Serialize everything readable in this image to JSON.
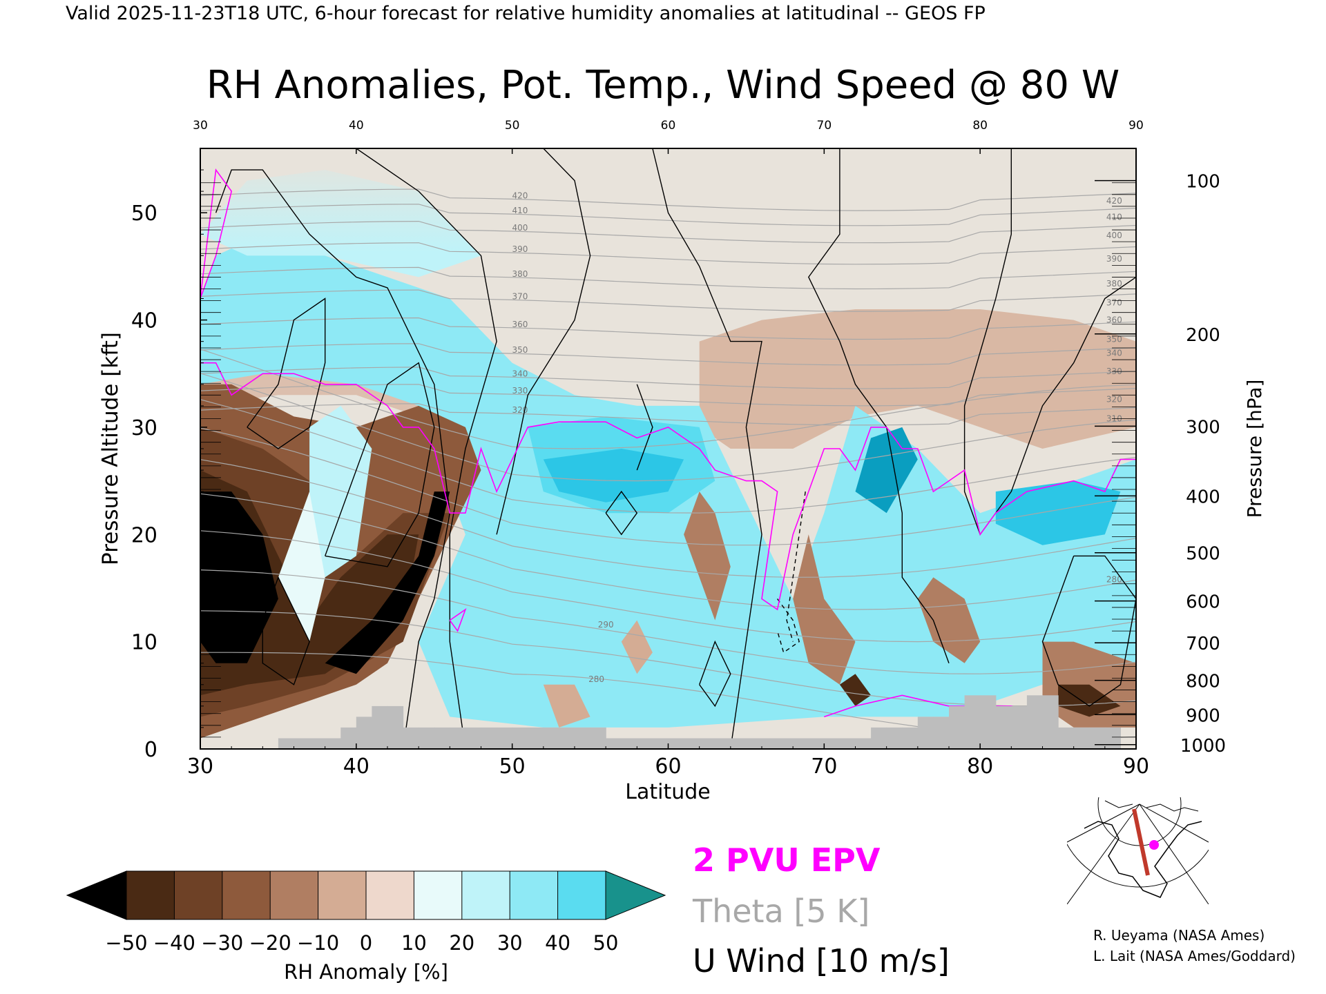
{
  "header": "Valid 2025-11-23T18 UTC, 6-hour forecast for relative humidity anomalies at latitudinal -- GEOS FP",
  "chart_data": {
    "type": "heatmap",
    "title": "RH Anomalies, Pot. Temp., Wind Speed @ 80 W",
    "xlabel": "Latitude",
    "ylabel_left": "Pressure Altitude [kft]",
    "ylabel_right": "Pressure [hPa]",
    "xlim": [
      30,
      90
    ],
    "ylim_kft": [
      0,
      56
    ],
    "x_ticks": [
      "30",
      "40",
      "50",
      "60",
      "70",
      "80",
      "90"
    ],
    "y_ticks_kft": [
      "0",
      "10",
      "20",
      "30",
      "40",
      "50"
    ],
    "y_ticks_hpa": [
      {
        "label": "100",
        "kft": 53.0
      },
      {
        "label": "200",
        "kft": 38.7
      },
      {
        "label": "300",
        "kft": 30.1
      },
      {
        "label": "400",
        "kft": 23.6
      },
      {
        "label": "500",
        "kft": 18.3
      },
      {
        "label": "600",
        "kft": 13.8
      },
      {
        "label": "700",
        "kft": 9.9
      },
      {
        "label": "800",
        "kft": 6.4
      },
      {
        "label": "900",
        "kft": 3.2
      },
      {
        "label": "1000",
        "kft": 0.4
      }
    ],
    "theta_labels_left": [
      {
        "label": "420",
        "kft": 51.6
      },
      {
        "label": "410",
        "kft": 50.2
      },
      {
        "label": "400",
        "kft": 48.6
      },
      {
        "label": "390",
        "kft": 46.6
      },
      {
        "label": "380",
        "kft": 44.3
      },
      {
        "label": "370",
        "kft": 42.2
      },
      {
        "label": "360",
        "kft": 39.6
      },
      {
        "label": "350",
        "kft": 37.2
      },
      {
        "label": "340",
        "kft": 35.0
      },
      {
        "label": "330",
        "kft": 33.4
      },
      {
        "label": "320",
        "kft": 31.6
      }
    ],
    "theta_labels_right": [
      {
        "label": "420",
        "kft": 51.1
      },
      {
        "label": "410",
        "kft": 49.6
      },
      {
        "label": "400",
        "kft": 47.9
      },
      {
        "label": "390",
        "kft": 45.7
      },
      {
        "label": "380",
        "kft": 43.4
      },
      {
        "label": "370",
        "kft": 41.6
      },
      {
        "label": "360",
        "kft": 40.0
      },
      {
        "label": "350",
        "kft": 38.2
      },
      {
        "label": "340",
        "kft": 36.9
      },
      {
        "label": "330",
        "kft": 35.2
      },
      {
        "label": "320",
        "kft": 32.6
      },
      {
        "label": "310",
        "kft": 30.8
      },
      {
        "label": "280",
        "kft": 15.8
      }
    ],
    "theta_labels_inner": [
      {
        "label": "290",
        "x": 56.0,
        "kft": 11.6
      },
      {
        "label": "280",
        "x": 55.4,
        "kft": 6.5
      }
    ],
    "legend_items": [
      {
        "label": "2 PVU EPV",
        "color": "#ff00ff"
      },
      {
        "label": "Theta [5 K]",
        "color": "#a8a8a8"
      },
      {
        "label": "U Wind [10 m/s]",
        "color": "#000000"
      }
    ],
    "colorbar": {
      "label": "RH Anomaly [%]",
      "ticks": [
        "−50",
        "−40",
        "−30",
        "−20",
        "−10",
        "0",
        "10",
        "20",
        "30",
        "40",
        "50"
      ],
      "colors": [
        "#000000",
        "#4a2a14",
        "#6e4126",
        "#8e5a3c",
        "#b07e62",
        "#d4ac94",
        "#eed8cc",
        "#e8fafa",
        "#bff3f9",
        "#8ee9f5",
        "#5adcf0",
        "#2cc6e6",
        "#0a9ec0",
        "#18928c"
      ]
    },
    "background_color": "#e8e3db",
    "terrain_color": "#bdbdbd",
    "terrain_kft": [
      0,
      0,
      0,
      0,
      0,
      1,
      1,
      1,
      1,
      2,
      3,
      4,
      4,
      2,
      2,
      2,
      2,
      2,
      2,
      2,
      2,
      2,
      2,
      2,
      2,
      2,
      1,
      1,
      1,
      1,
      1,
      1,
      1,
      1,
      1,
      1,
      1,
      1,
      1,
      1,
      1,
      1,
      1,
      2,
      2,
      2,
      3,
      3,
      4,
      5,
      5,
      4,
      4,
      5,
      5,
      2,
      2,
      2,
      2,
      0
    ]
  },
  "credits": [
    "R. Ueyama (NASA Ames)",
    "L. Lait (NASA Ames/Goddard)"
  ],
  "inset_map": {
    "description_icon": "polar-map-icon",
    "track_color": "#c0392b",
    "marker_color": "#ff00ff"
  }
}
